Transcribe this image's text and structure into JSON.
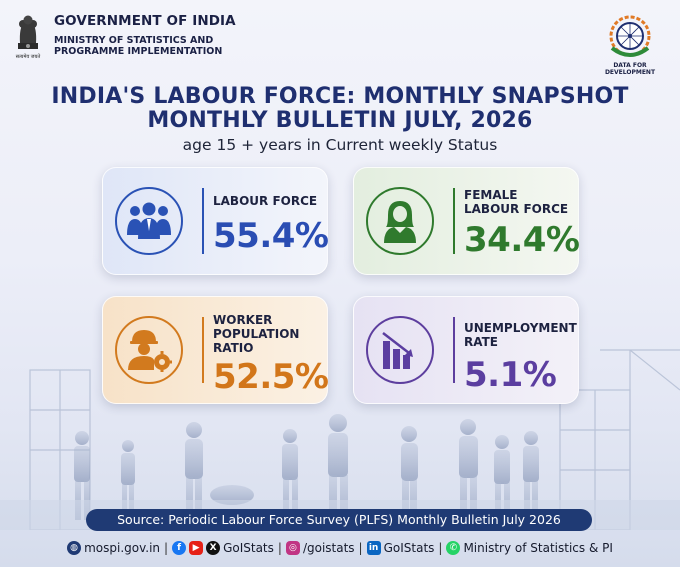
{
  "header": {
    "gov_line1": "GOVERNMENT OF INDIA",
    "gov_line2": "MINISTRY OF STATISTICS AND",
    "gov_line3": "PROGRAMME IMPLEMENTATION",
    "emblem_motto": "सत्यमेव जयते",
    "logo_caption": "DATA FOR DEVELOPMENT"
  },
  "title_line1": "INDIA'S LABOUR FORCE: MONTHLY SNAPSHOT",
  "title_line2": "MONTHLY BULLETIN JULY, 2026",
  "subtitle": "age 15 + years in Current weekly Status",
  "cards": [
    {
      "label_lines": [
        "LABOUR FORCE"
      ],
      "value": "55.4%",
      "icon": "people-group-icon",
      "color": "#2a4db3"
    },
    {
      "label_lines": [
        "FEMALE",
        "LABOUR FORCE"
      ],
      "value": "34.4%",
      "icon": "woman-icon",
      "color": "#2f7a2d"
    },
    {
      "label_lines": [
        "WORKER",
        "POPULATION",
        "RATIO"
      ],
      "value": "52.5%",
      "icon": "worker-gear-icon",
      "color": "#d2761a"
    },
    {
      "label_lines": [
        "UNEMPLOYMENT",
        "RATE"
      ],
      "value": "5.1%",
      "icon": "declining-bar-chart-icon",
      "color": "#5b3ea0"
    }
  ],
  "source": "Source: Periodic Labour Force Survey (PLFS) Monthly Bulletin July 2026",
  "footer": {
    "website": "mospi.gov.in",
    "handle1": "GoIStats",
    "handle2": "/goistats",
    "handle3": "GoIStats",
    "handle4": "Ministry of Statistics & PI"
  }
}
